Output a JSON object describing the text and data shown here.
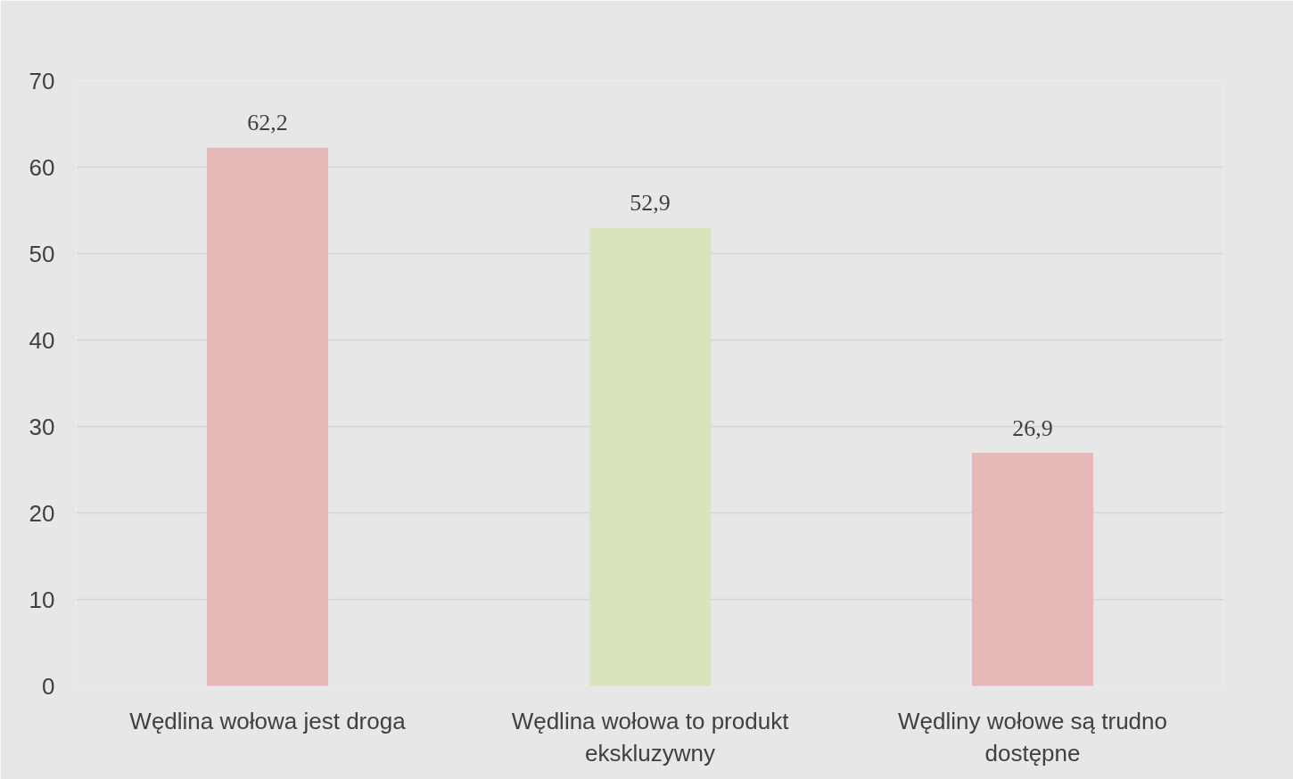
{
  "chart_data": {
    "type": "bar",
    "categories": [
      "Wędlina wołowa jest droga",
      "Wędlina wołowa to produkt ekskluzywny",
      "Wędliny wołowe są trudno dostępne"
    ],
    "values": [
      62.2,
      52.9,
      26.9
    ],
    "colors": [
      "#e6b8b7",
      "#d8e4bc",
      "#e6b8b7"
    ],
    "value_labels": [
      "62,2",
      "52,9",
      "26,9"
    ],
    "ylim": [
      0,
      70
    ],
    "yticks": [
      0,
      10,
      20,
      30,
      40,
      50,
      60,
      70
    ],
    "grid": "y"
  }
}
